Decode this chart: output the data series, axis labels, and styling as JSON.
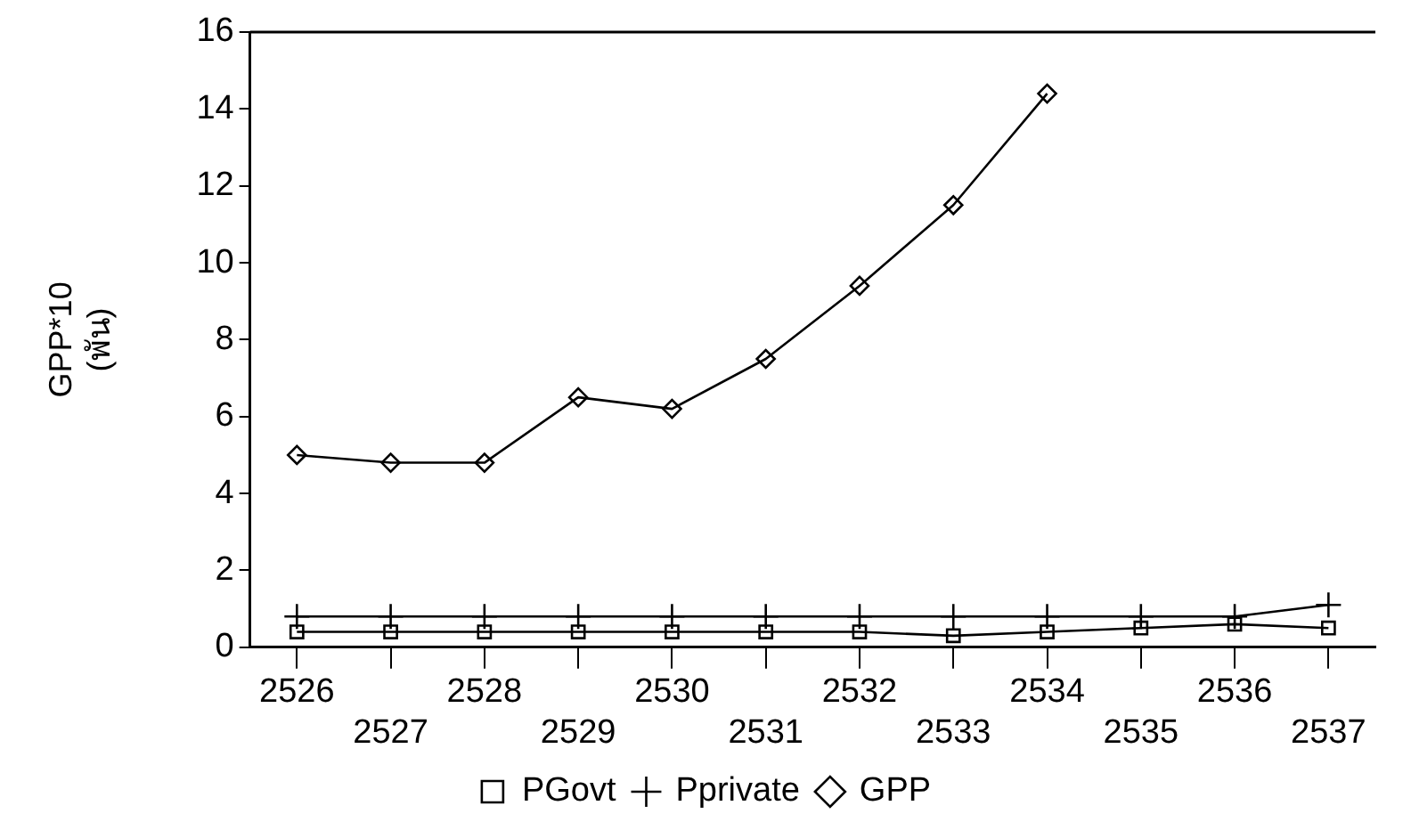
{
  "chart_data": {
    "type": "line",
    "ylabel": "GPP*10\n(พัน)",
    "categories": [
      "2526",
      "2527",
      "2528",
      "2529",
      "2530",
      "2531",
      "2532",
      "2533",
      "2534",
      "2535",
      "2536",
      "2537"
    ],
    "series": [
      {
        "name": "PGovt",
        "color": "#000000",
        "marker": "square",
        "values": [
          0.4,
          0.4,
          0.4,
          0.4,
          0.4,
          0.4,
          0.4,
          0.3,
          0.4,
          0.5,
          0.6,
          0.5
        ]
      },
      {
        "name": "Pprivate",
        "color": "#000000",
        "marker": "cross",
        "values": [
          0.8,
          0.8,
          0.8,
          0.8,
          0.8,
          0.8,
          0.8,
          0.8,
          0.8,
          0.8,
          0.8,
          1.1
        ]
      },
      {
        "name": "GPP",
        "color": "#000000",
        "marker": "diamond",
        "values": [
          5.0,
          4.8,
          4.8,
          6.5,
          6.2,
          7.5,
          9.4,
          11.5,
          14.4,
          null,
          null,
          null
        ]
      }
    ],
    "ylim": [
      0,
      16
    ],
    "yticks": [
      0,
      2,
      4,
      6,
      8,
      10,
      12,
      14,
      16
    ],
    "grid": false,
    "legend": "bottom",
    "line_style": "solid"
  }
}
